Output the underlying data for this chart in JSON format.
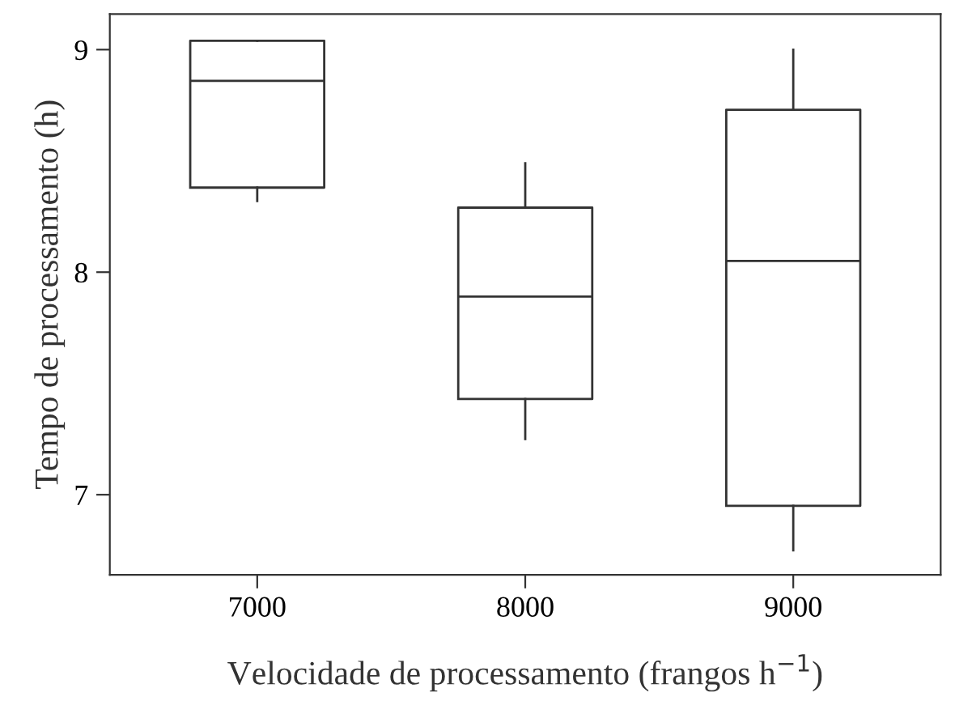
{
  "chart_data": {
    "type": "box",
    "xlabel": "Velocidade de processamento (frangos h$^{−1}$)",
    "ylabel": "Tempo de processamento (h)",
    "categories": [
      "7000",
      "8000",
      "9000"
    ],
    "boxes": [
      {
        "low": 8.32,
        "q1": 8.38,
        "median": 8.86,
        "q3": 9.04,
        "high": 9.04
      },
      {
        "low": 7.25,
        "q1": 7.43,
        "median": 7.89,
        "q3": 8.29,
        "high": 8.49
      },
      {
        "low": 6.75,
        "q1": 6.95,
        "median": 8.05,
        "q3": 8.73,
        "high": 9.0
      }
    ],
    "color": "#333333",
    "ylim": [
      6.64,
      9.16
    ],
    "yticks": [
      7,
      8,
      9
    ],
    "grid": false
  }
}
